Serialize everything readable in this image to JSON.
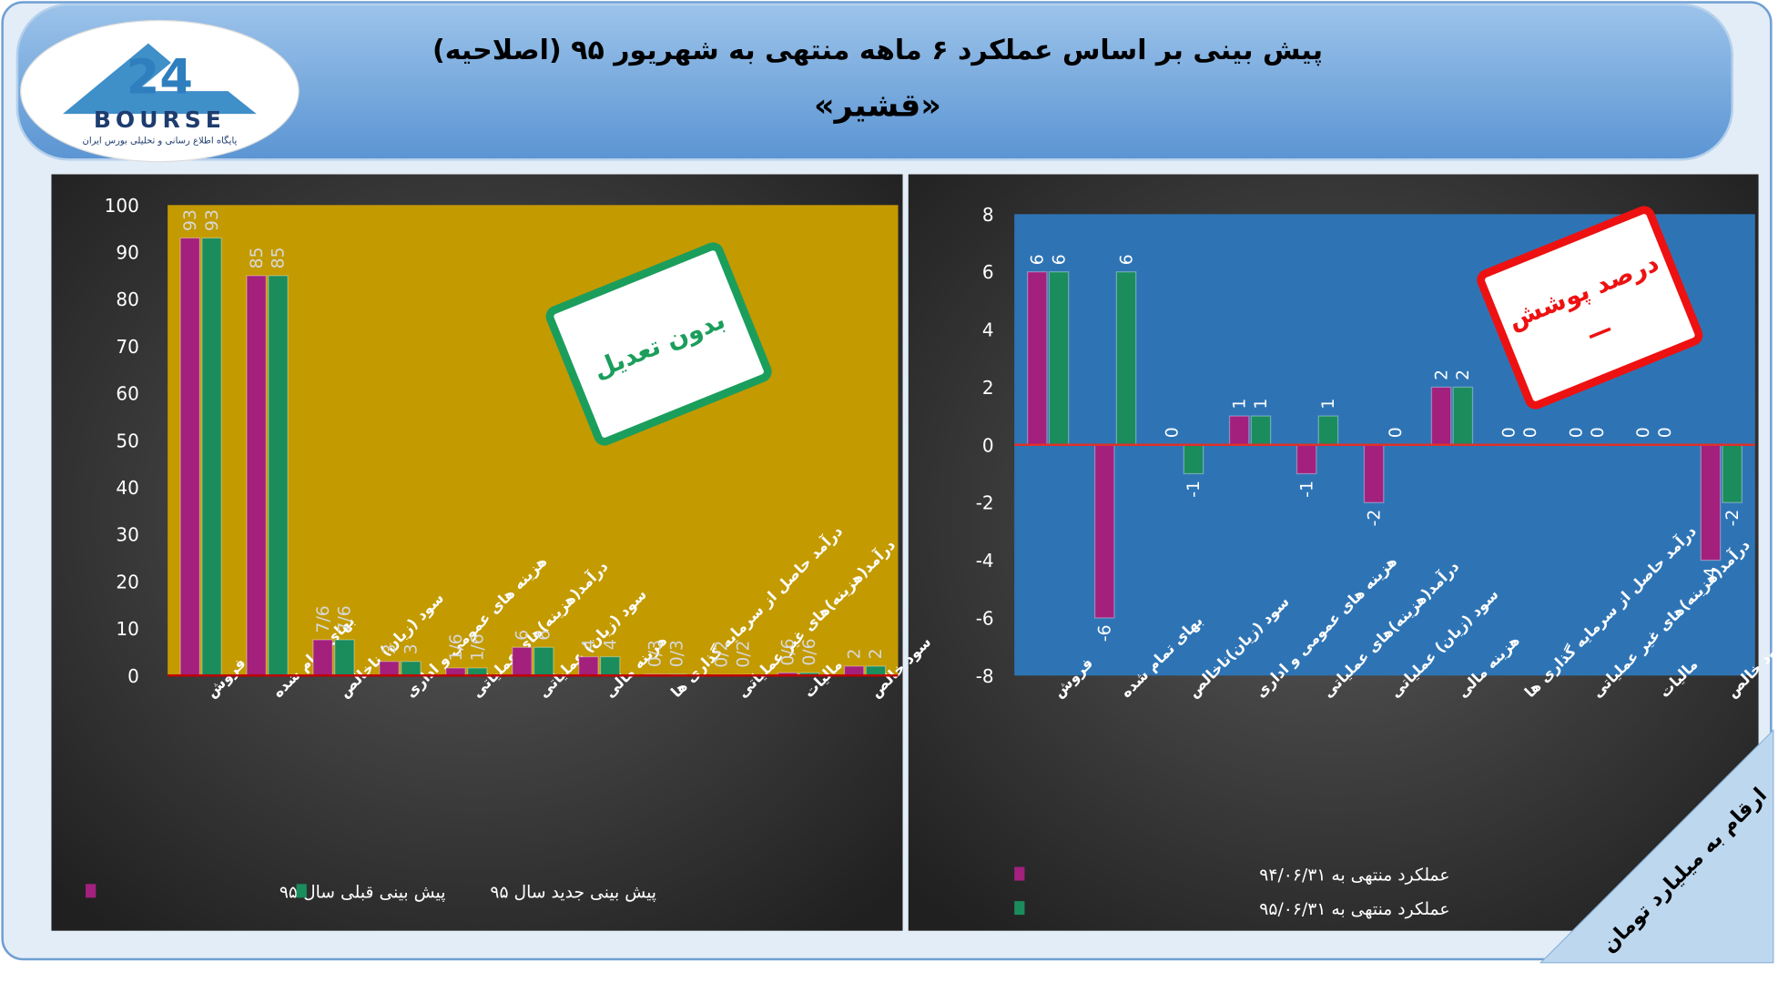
{
  "header": {
    "title": "پیش بینی بر اساس عملکرد ۶ ماهه منتهی به شهریور ۹۵ (اصلاحیه)",
    "subtitle": "«قشیر»"
  },
  "logo": {
    "number": "24",
    "name": "BOURSE",
    "tagline": "پایگاه اطلاع رسانی و تحلیلی بورس ایران"
  },
  "note": "ارقام به میلیارد تومان",
  "chart_data": [
    {
      "type": "bar",
      "annotation": "بدون تعدیل",
      "categories": [
        "فروش",
        "بهای تمام شده",
        "سود (زیان) ناخالص",
        "هزینه های عمومی و اداری",
        "درآمد(هزینه)های عملیاتی",
        "سود (زیان) عملیاتی",
        "هزینه مالی",
        "درآمد حاصل از سرمایه گذاری ها",
        "درآمد(هزینه)های غیر عملیاتی",
        "مالیات",
        "سود خالص"
      ],
      "series": [
        {
          "name": "پیش بینی قبلی سال ۹۵",
          "color": "#a3207c",
          "values": [
            93,
            85,
            7.6,
            3,
            1.6,
            6,
            4,
            0.3,
            0.2,
            0.6,
            2
          ],
          "value_labels": [
            "93",
            "85",
            "7/6",
            "3",
            "1/6",
            "6",
            "4",
            "0/3",
            "0/2",
            "0/6",
            "2"
          ]
        },
        {
          "name": "پیش بینی جدید سال ۹۵",
          "color": "#1b8c5c",
          "values": [
            93,
            85,
            7.6,
            3,
            1.6,
            6,
            4,
            0.3,
            0.2,
            0.6,
            2
          ],
          "value_labels": [
            "93",
            "85",
            "7/6",
            "3",
            "1/6",
            "6",
            "4",
            "0/3",
            "0/2",
            "0/6",
            "2"
          ]
        }
      ],
      "ylim": [
        0,
        100
      ],
      "yticks": [
        0,
        10,
        20,
        30,
        40,
        50,
        60,
        70,
        80,
        90,
        100
      ],
      "grid": false,
      "legend": "bottom"
    },
    {
      "type": "bar",
      "annotation": "درصد پوشش",
      "annotation_value": "—",
      "categories": [
        "فروش",
        "بهای تمام شده",
        "سود (زیان)ناخالص",
        "هزینه های عمومی و اداری",
        "درآمد(هزینه)های عملیاتی",
        "سود (زیان) عملیاتی",
        "هزینه مالی",
        "درآمد حاصل از سرمایه گذاری ها",
        "درآمد(هزینه)های غیر عملیاتی",
        "مالیات",
        "سود خالص"
      ],
      "series": [
        {
          "name": "عملکرد منتهی به ۹۴/۰۶/۳۱",
          "color": "#a3207c",
          "values": [
            6,
            -6,
            0,
            1,
            -1,
            -2,
            2,
            0,
            0,
            0,
            -4
          ]
        },
        {
          "name": "عملکرد منتهی به ۹۵/۰۶/۳۱",
          "color": "#1b8c5c",
          "values": [
            6,
            6,
            -1,
            1,
            1,
            0,
            2,
            0,
            0,
            0,
            -2
          ]
        }
      ],
      "ylim": [
        -8,
        8
      ],
      "yticks": [
        -8,
        -6,
        -4,
        -2,
        0,
        2,
        4,
        6,
        8
      ],
      "grid": false,
      "legend": "bottom-left"
    }
  ]
}
